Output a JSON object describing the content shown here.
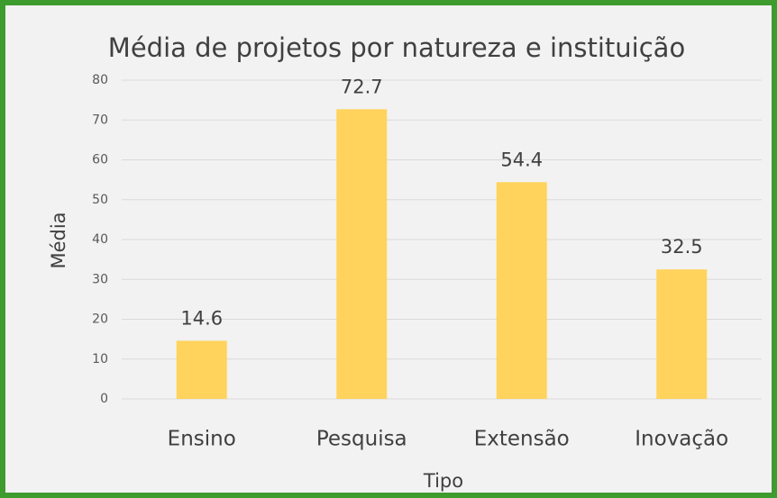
{
  "chart_data": {
    "type": "bar",
    "title": "Média de projetos por natureza e instituição",
    "x_label": "Tipo",
    "y_label": "Média",
    "categories": [
      "Ensino",
      "Pesquisa",
      "Extensão",
      "Inovação"
    ],
    "values": [
      14.6,
      72.7,
      54.4,
      32.5
    ],
    "color": "#ffd35c",
    "ylim": [
      0,
      80
    ],
    "yticks": [
      0,
      10,
      20,
      30,
      40,
      50,
      60,
      70,
      80
    ],
    "grid": true
  }
}
